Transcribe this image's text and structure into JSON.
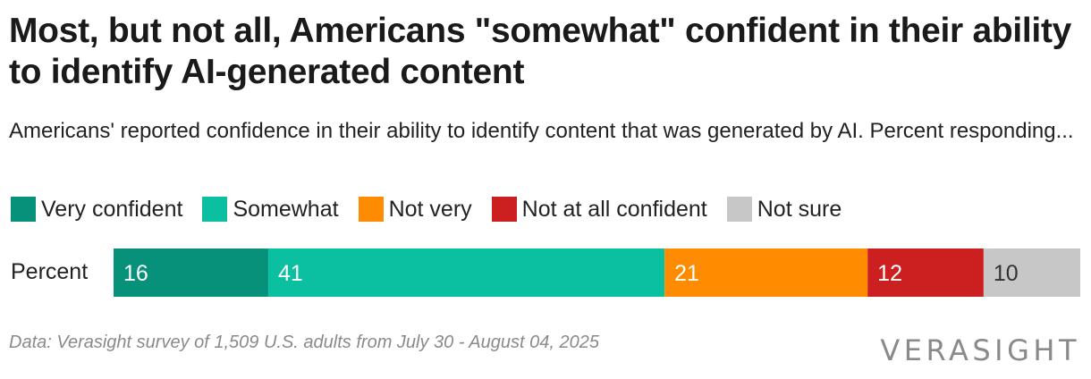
{
  "header": {
    "title": "Most, but not all, Americans \"somewhat\" confident in their ability to identify AI-generated content",
    "subtitle": "Americans' reported confidence in their ability to identify content that was generated by AI. Percent responding..."
  },
  "footer": {
    "note": "Data: Verasight survey of 1,509 U.S. adults from July 30 - August 04, 2025",
    "logo": "VERASIGHT"
  },
  "chart_data": {
    "type": "bar",
    "stacked": true,
    "orientation": "horizontal",
    "categories": [
      "Percent"
    ],
    "series": [
      {
        "name": "Very confident",
        "values": [
          16
        ],
        "color": "#07917a",
        "label_color": "#ffffff"
      },
      {
        "name": "Somewhat",
        "values": [
          41
        ],
        "color": "#0bbfa1",
        "label_color": "#ffffff"
      },
      {
        "name": "Not very",
        "values": [
          21
        ],
        "color": "#ff8c00",
        "label_color": "#ffffff"
      },
      {
        "name": "Not at all confident",
        "values": [
          12
        ],
        "color": "#cc1f20",
        "label_color": "#ffffff"
      },
      {
        "name": "Not sure",
        "values": [
          10
        ],
        "color": "#c7c7c7",
        "label_color": "#333333"
      }
    ],
    "xlim": [
      0,
      100
    ],
    "legend": "top-left",
    "grid": false
  }
}
